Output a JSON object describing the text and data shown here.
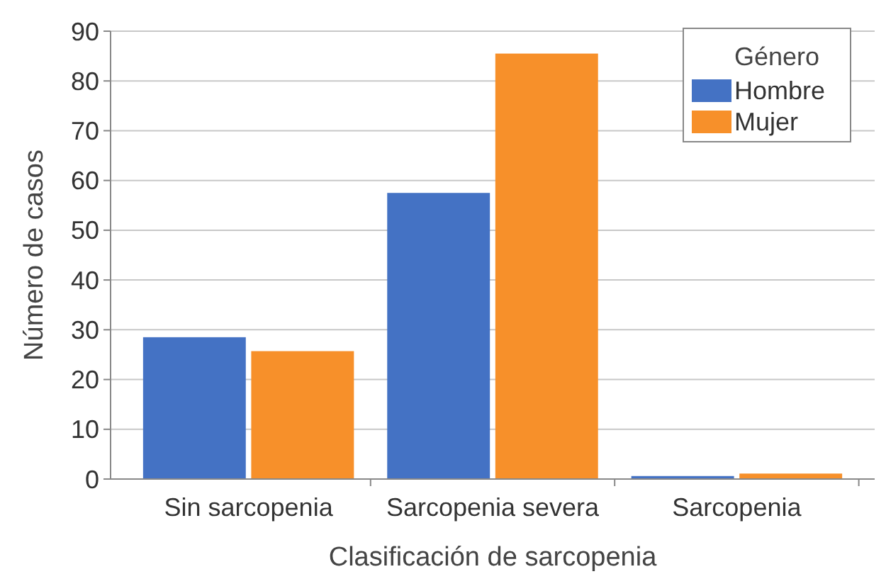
{
  "chart_data": {
    "type": "bar",
    "xlabel": "Clasificación de sarcopenia",
    "ylabel": "Número de casos",
    "legend_title": "Género",
    "categories": [
      "Sin sarcopenia",
      "Sarcopenia severa",
      "Sarcopenia"
    ],
    "series": [
      {
        "name": "Hombre",
        "color": "#4472c4",
        "values": [
          28.5,
          57.5,
          0.6
        ]
      },
      {
        "name": "Mujer",
        "color": "#f7902a",
        "values": [
          25.7,
          85.5,
          1.1
        ]
      }
    ],
    "ylim": [
      0,
      90
    ],
    "yticks": [
      0,
      10,
      20,
      30,
      40,
      50,
      60,
      70,
      80,
      90
    ],
    "grid": "y",
    "legend": "top right"
  }
}
